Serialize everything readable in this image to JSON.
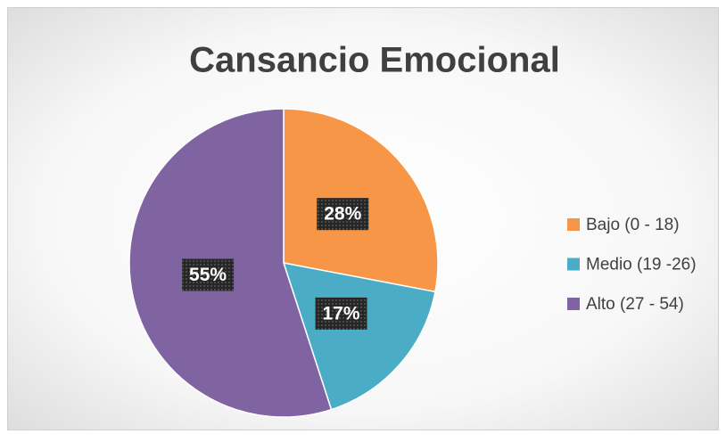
{
  "chart_data": {
    "type": "pie",
    "title": "Cansancio Emocional",
    "categories": [
      "Bajo (0 - 18)",
      "Medio (19 -26)",
      "Alto (27 - 54)"
    ],
    "values": [
      28,
      17,
      55
    ],
    "value_labels": [
      "28%",
      "17%",
      "55%"
    ],
    "colors": [
      "#f79646",
      "#4bacc6",
      "#8064a2"
    ],
    "legend": "right"
  }
}
